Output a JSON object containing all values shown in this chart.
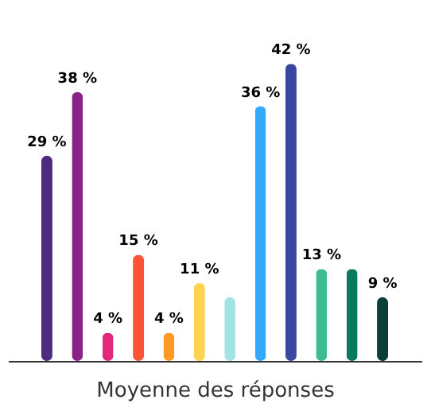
{
  "chart_data": {
    "type": "bar",
    "xlabel": "Moyenne des réponses",
    "categories": [
      null,
      null,
      null,
      null,
      null,
      null,
      null,
      null,
      null,
      null,
      null,
      null
    ],
    "values": [
      29,
      38,
      4,
      15,
      4,
      11,
      9,
      36,
      42,
      13,
      13,
      9
    ],
    "value_labels": [
      "29 %",
      "38 %",
      "4 %",
      "15 %",
      "4 %",
      "11 %",
      null,
      "36 %",
      "42 %",
      "13 %",
      null,
      "9 %"
    ],
    "colors": [
      "#4b2c7f",
      "#8b2288",
      "#e0287d",
      "#ff5338",
      "#ff9a24",
      "#ffd250",
      "#a3e3e8",
      "#33aaff",
      "#3a47a0",
      "#3dbd8d",
      "#0a7a5e",
      "#083f36"
    ],
    "grid": false
  }
}
